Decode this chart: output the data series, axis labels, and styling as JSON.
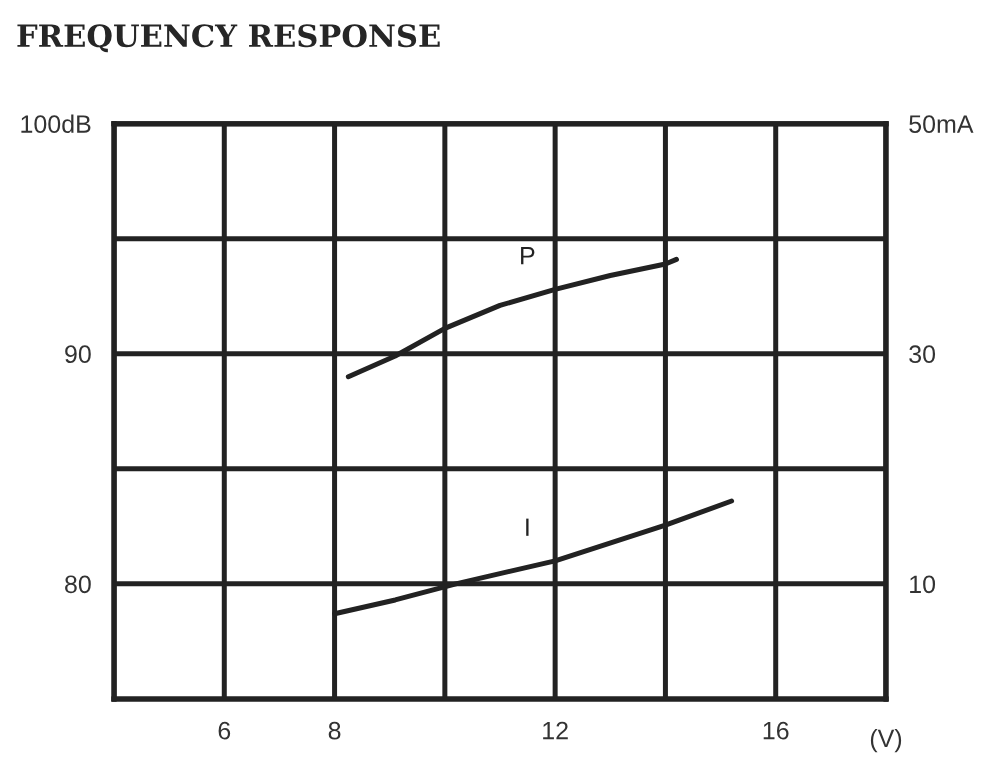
{
  "chart_data": {
    "type": "line",
    "title": "FREQUENCY RESPONSE",
    "xlabel": "(V)",
    "xlim": [
      4,
      18
    ],
    "xticks": [
      {
        "value": 4,
        "label": null
      },
      6,
      8,
      {
        "value": 10,
        "label": null
      },
      12,
      {
        "value": 14,
        "label": null
      },
      16,
      {
        "value": 18,
        "label": null
      }
    ],
    "ylim": [
      75,
      100
    ],
    "yticks": [
      80,
      {
        "value": 85,
        "label": null
      },
      90,
      {
        "value": 95,
        "label": null
      },
      {
        "value": 100,
        "label": "100dB"
      }
    ],
    "y2lim": [
      0,
      50
    ],
    "y2ticks": [
      10,
      30,
      {
        "value": 50,
        "label": "50mA"
      }
    ],
    "grid": true,
    "legend": false,
    "marker": "none",
    "line_style": "solid",
    "series": [
      {
        "name": "P",
        "color": "#222222",
        "x": [
          8.25,
          9.1,
          10,
          11,
          12,
          13,
          14,
          14.2
        ],
        "values": [
          89.0,
          89.9,
          91.1,
          92.1,
          92.8,
          93.4,
          93.9,
          94.1
        ]
      },
      {
        "name": "I",
        "color": "#222222",
        "axis": "y2",
        "x": [
          8,
          9.1,
          10.2,
          12,
          14,
          15.2
        ],
        "values": [
          7.4,
          8.6,
          10.0,
          12.0,
          15.1,
          17.2
        ]
      }
    ]
  }
}
